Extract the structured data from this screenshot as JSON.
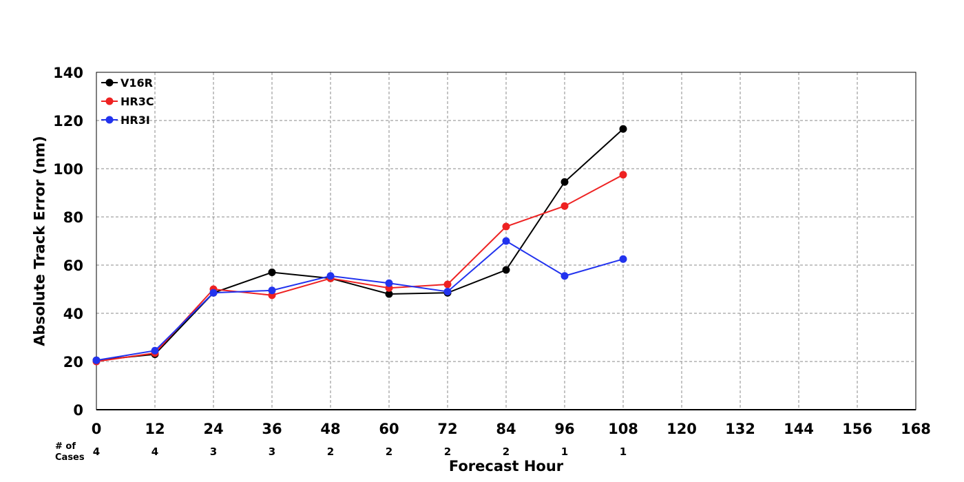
{
  "chart_data": {
    "type": "line",
    "xlabel": "Forecast Hour",
    "ylabel": "Absolute Track Error (nm)",
    "x": [
      0,
      12,
      24,
      36,
      48,
      60,
      72,
      84,
      96,
      108
    ],
    "xlim": [
      0,
      168
    ],
    "xticks": [
      0,
      12,
      24,
      36,
      48,
      60,
      72,
      84,
      96,
      108,
      120,
      132,
      144,
      156,
      168
    ],
    "ylim": [
      0,
      140
    ],
    "yticks": [
      0,
      20,
      40,
      60,
      80,
      100,
      120,
      140
    ],
    "grid": true,
    "legend_position": "top-left",
    "series": [
      {
        "name": "V16R",
        "color": "#000000",
        "values": [
          20.5,
          23.0,
          48.5,
          57.0,
          54.5,
          48.0,
          48.5,
          58.0,
          94.5,
          116.5
        ]
      },
      {
        "name": "HR3C",
        "color": "#ee2222",
        "values": [
          20.0,
          23.5,
          50.0,
          47.5,
          54.5,
          50.5,
          52.0,
          76.0,
          84.5,
          97.5
        ]
      },
      {
        "name": "HR3I",
        "color": "#2233ee",
        "values": [
          20.5,
          24.5,
          48.5,
          49.5,
          55.5,
          52.5,
          49.0,
          70.0,
          55.5,
          62.5
        ]
      }
    ],
    "cases": {
      "label_line1": "# of",
      "label_line2": "Cases",
      "counts": [
        4,
        4,
        3,
        3,
        2,
        2,
        2,
        2,
        1,
        1
      ]
    }
  }
}
